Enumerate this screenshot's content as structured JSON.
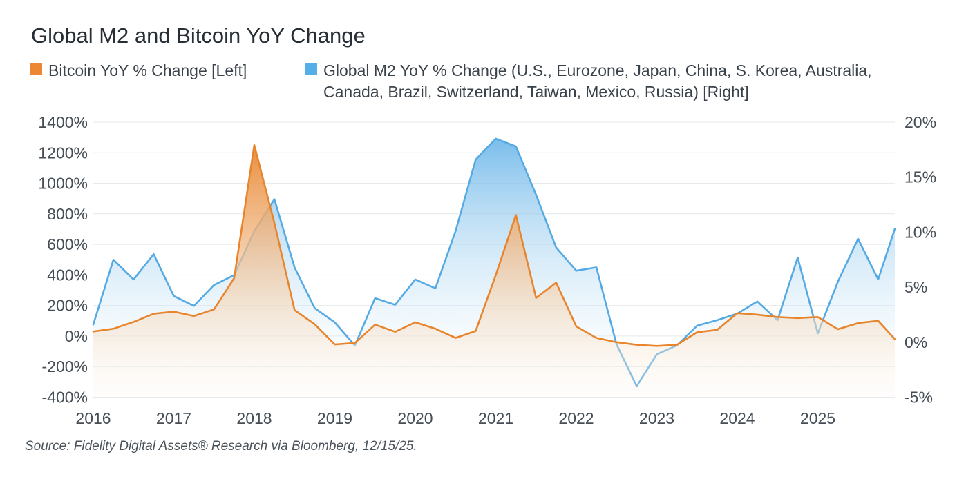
{
  "title": "Global M2 and Bitcoin YoY Change",
  "source": "Source: Fidelity Digital Assets® Research via Bloomberg, 12/15/25.",
  "legend": {
    "items": [
      {
        "label": "Bitcoin YoY % Change [Left]",
        "color": "#ED8733"
      },
      {
        "label": "Global M2 YoY % Change (U.S., Eurozone, Japan, China, S. Korea, Australia, Canada, Brazil, Switzerland, Taiwan, Mexico, Russia) [Right]",
        "color": "#56AEE8"
      }
    ]
  },
  "chart_data": {
    "type": "area",
    "title": "Global M2 and Bitcoin YoY Change",
    "grid": true,
    "legend_position": "top",
    "x_axis": {
      "labels": [
        "2016",
        "2017",
        "2018",
        "2019",
        "2020",
        "2021",
        "2022",
        "2023",
        "2024",
        "2025"
      ]
    },
    "left_axis": {
      "name": "Bitcoin YoY % Change",
      "tick_labels": [
        "1400%",
        "1200%",
        "1000%",
        "800%",
        "600%",
        "400%",
        "200%",
        "0%",
        "-200%",
        "-400%"
      ],
      "ticks": [
        1400,
        1200,
        1000,
        800,
        600,
        400,
        200,
        0,
        -200,
        -400
      ],
      "range": [
        -400,
        1400
      ]
    },
    "right_axis": {
      "name": "Global M2 YoY % Change",
      "tick_labels": [
        "20%",
        "15%",
        "10%",
        "5%",
        "0%",
        "-5%"
      ],
      "ticks": [
        20,
        15,
        10,
        5,
        0,
        -5
      ],
      "range": [
        -5,
        20
      ]
    },
    "x_years": [
      2016.0,
      2016.25,
      2016.5,
      2016.75,
      2017.0,
      2017.25,
      2017.5,
      2017.75,
      2018.0,
      2018.25,
      2018.5,
      2018.75,
      2019.0,
      2019.25,
      2019.5,
      2019.75,
      2020.0,
      2020.25,
      2020.5,
      2020.75,
      2021.0,
      2021.25,
      2021.5,
      2021.75,
      2022.0,
      2022.25,
      2022.5,
      2022.75,
      2023.0,
      2023.25,
      2023.5,
      2023.75,
      2024.0,
      2024.25,
      2024.5,
      2024.75,
      2025.0,
      2025.25,
      2025.5,
      2025.75,
      2025.96
    ],
    "series": [
      {
        "name": "Bitcoin YoY % Change",
        "axis": "left",
        "unit": "%",
        "line_color": "#E8842C",
        "values": [
          30,
          48,
          93,
          146,
          160,
          131,
          175,
          380,
          1250,
          740,
          170,
          78,
          -55,
          -45,
          75,
          28,
          90,
          48,
          -12,
          33,
          400,
          792,
          250,
          350,
          63,
          -12,
          -40,
          -57,
          -65,
          -57,
          25,
          41,
          150,
          140,
          125,
          118,
          125,
          45,
          85,
          100,
          -20
        ]
      },
      {
        "name": "Global M2 YoY % Change",
        "axis": "right",
        "unit": "%",
        "line_color": "#55AAE3",
        "values": [
          1.6,
          7.5,
          5.7,
          8.0,
          4.2,
          3.3,
          5.2,
          6.1,
          10.1,
          13.0,
          6.8,
          3.1,
          1.8,
          -0.3,
          4.0,
          3.4,
          5.7,
          4.9,
          10.1,
          16.6,
          18.5,
          17.8,
          13.4,
          8.6,
          6.5,
          6.8,
          -0.2,
          -4.0,
          -1.1,
          -0.3,
          1.5,
          2.0,
          2.6,
          3.7,
          2.0,
          7.7,
          0.8,
          5.5,
          9.4,
          5.7,
          10.3
        ]
      }
    ],
    "colors": {
      "grid": "#E4E7E9",
      "axis_text": "#454d55"
    }
  }
}
